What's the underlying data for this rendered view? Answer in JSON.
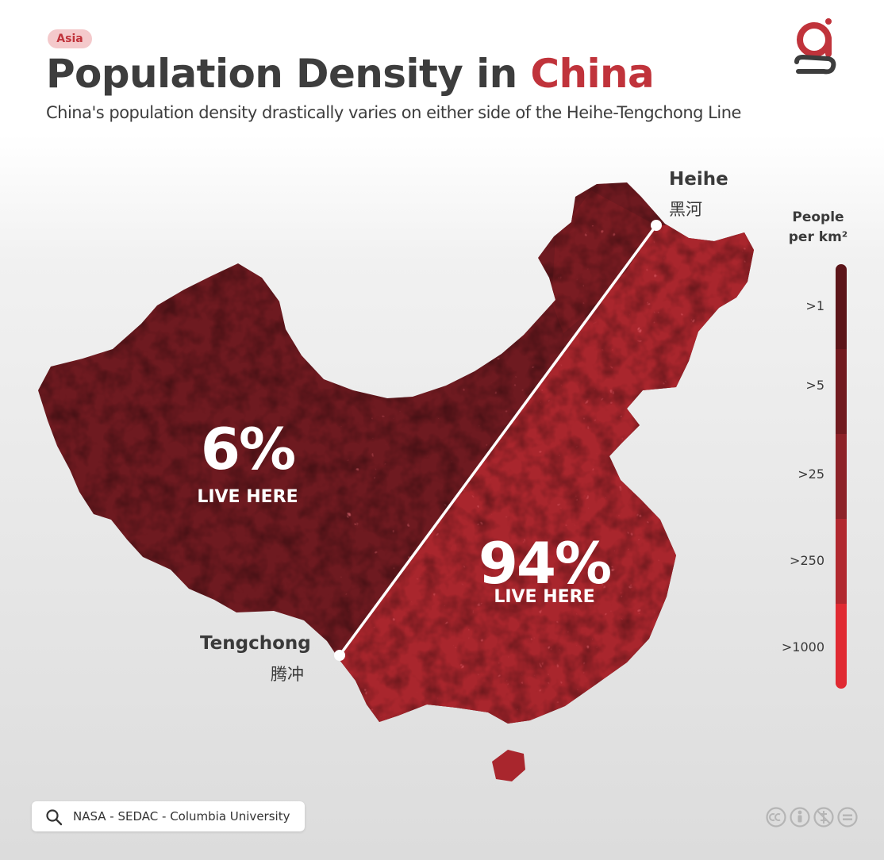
{
  "header": {
    "tag": "Asia",
    "title_main": "Population Density in ",
    "title_highlight": "China",
    "subtitle": "China's population density drastically varies on either side of the Heihe-Tengchong Line"
  },
  "map": {
    "cities": [
      {
        "name": "Heihe",
        "cn": "黑河"
      },
      {
        "name": "Tengchong",
        "cn": "腾冲"
      }
    ],
    "regions": [
      {
        "pct": "6%",
        "label": "LIVE HERE"
      },
      {
        "pct": "94%",
        "label": "LIVE HERE"
      }
    ]
  },
  "legend": {
    "title_line1": "People",
    "title_line2": "per km²",
    "classes": [
      {
        "label": ">1",
        "color": "#5c1519"
      },
      {
        "label": ">5",
        "color": "#711a1f"
      },
      {
        "label": ">25",
        "color": "#8d2228"
      },
      {
        "label": ">250",
        "color": "#b1282f"
      },
      {
        "label": ">1000",
        "color": "#e02a32"
      }
    ]
  },
  "source": {
    "icon": "search-icon",
    "text": "NASA - SEDAC - Columbia University"
  },
  "colors": {
    "accent": "#c0333b",
    "west": "#6e1a20",
    "east": "#a9262d",
    "text": "#3d3d3d"
  }
}
